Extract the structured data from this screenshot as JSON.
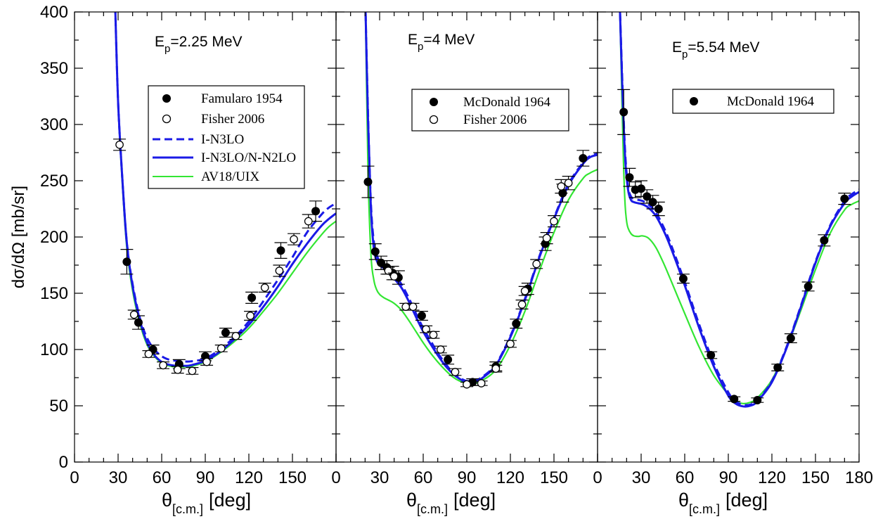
{
  "figure": {
    "ylabel": "dσ/dΩ [mb/sr]",
    "xlabel_main": "θ",
    "xlabel_sub": "[c.m.]",
    "xlabel_unit": "[deg]",
    "colors": {
      "dashed": "#1a1ae6",
      "solid": "#1a1ae6",
      "av18": "#33e633",
      "axis": "#000000"
    }
  },
  "chart_data": [
    {
      "type": "scatter",
      "panel": "left",
      "title": "E_p=2.25 MeV",
      "title_main": "E",
      "title_sub": "p",
      "title_rest": "=2.25 MeV",
      "xlim": [
        0,
        180
      ],
      "ylim": [
        0,
        400
      ],
      "x_ticks": [
        0,
        30,
        60,
        90,
        120,
        150
      ],
      "y_ticks": [
        0,
        50,
        100,
        150,
        200,
        250,
        300,
        350,
        400
      ],
      "legend": [
        "Famularo 1954",
        "Fisher 2006",
        "I-N3LO",
        "I-N3LO/N-N2LO",
        "AV18/UIX"
      ],
      "series": [
        {
          "name": "Famularo 1954",
          "kind": "filled",
          "x": [
            36,
            44,
            54,
            72,
            90,
            104,
            122,
            142,
            166
          ],
          "y": [
            178,
            124,
            100,
            87,
            94,
            115,
            146,
            188,
            223
          ],
          "err": [
            11,
            6,
            4,
            4,
            4,
            4,
            5,
            7,
            9
          ]
        },
        {
          "name": "Fisher 2006",
          "kind": "open",
          "x": [
            31,
            41,
            51,
            61,
            71,
            81,
            91,
            101,
            111,
            121,
            131,
            141,
            151,
            161
          ],
          "y": [
            282,
            131,
            96,
            86,
            82,
            81,
            89,
            101,
            112,
            130,
            155,
            170,
            198,
            214
          ],
          "err": [
            5,
            4,
            3,
            3,
            3,
            3,
            3,
            3,
            3,
            4,
            4,
            5,
            5,
            6
          ]
        },
        {
          "name": "I-N3LO",
          "kind": "dashed",
          "x": [
            28,
            30,
            33,
            36,
            40,
            45,
            50,
            55,
            60,
            65,
            70,
            75,
            80,
            90,
            100,
            110,
            120,
            130,
            140,
            150,
            160,
            170,
            175,
            180
          ],
          "y": [
            405,
            320,
            250,
            195,
            158,
            128,
            110,
            100,
            94,
            91,
            90,
            89.5,
            89.5,
            92,
            100,
            111,
            125,
            143,
            162,
            182,
            204,
            220,
            226,
            230
          ]
        },
        {
          "name": "I-N3LO/N-N2LO",
          "kind": "solid",
          "x": [
            28,
            30,
            33,
            36,
            40,
            45,
            50,
            55,
            60,
            65,
            70,
            75,
            80,
            90,
            100,
            110,
            120,
            130,
            140,
            150,
            160,
            170,
            175,
            180
          ],
          "y": [
            405,
            320,
            250,
            195,
            156,
            126,
            106,
            95,
            89,
            86.5,
            85.5,
            85.5,
            86,
            90,
            98,
            109,
            122,
            138,
            156,
            176,
            194,
            210,
            216,
            221
          ]
        },
        {
          "name": "AV18/UIX",
          "kind": "av18",
          "x": [
            28,
            30,
            33,
            36,
            40,
            45,
            50,
            55,
            60,
            65,
            70,
            75,
            80,
            90,
            100,
            110,
            120,
            130,
            140,
            150,
            160,
            170,
            175,
            180
          ],
          "y": [
            405,
            318,
            245,
            190,
            152,
            123,
            104,
            94,
            88,
            85.5,
            84.5,
            84.5,
            85,
            89,
            97,
            107,
            119,
            134,
            150,
            168,
            186,
            202,
            209,
            214
          ]
        }
      ]
    },
    {
      "type": "scatter",
      "panel": "middle",
      "title": "E_p=4 MeV",
      "title_main": "E",
      "title_sub": "p",
      "title_rest": "=4 MeV",
      "xlim": [
        0,
        180
      ],
      "ylim": [
        0,
        400
      ],
      "x_ticks": [
        0,
        30,
        60,
        90,
        120,
        150
      ],
      "legend": [
        "McDonald 1964",
        "Fisher 2006"
      ],
      "series": [
        {
          "name": "McDonald 1964",
          "kind": "filled",
          "x": [
            22,
            27,
            31,
            35,
            39,
            43,
            59,
            77,
            94,
            110,
            124,
            132,
            144,
            156,
            170
          ],
          "y": [
            249,
            187,
            177,
            173,
            168,
            164,
            130,
            91,
            71,
            85,
            123,
            154,
            194,
            239,
            270
          ],
          "err": [
            14,
            7,
            6,
            6,
            6,
            6,
            4,
            4,
            3,
            4,
            4,
            5,
            6,
            8,
            7
          ]
        },
        {
          "name": "Fisher 2006",
          "kind": "open",
          "x": [
            36,
            40,
            48,
            53,
            62,
            67,
            72,
            82,
            90,
            100,
            110,
            120,
            128,
            130,
            138,
            145,
            150,
            155,
            160
          ],
          "y": [
            170,
            165,
            138,
            138,
            118,
            113,
            100,
            80,
            69,
            70,
            83,
            105,
            140,
            152,
            176,
            199,
            214,
            245,
            248
          ],
          "err": [
            3,
            3,
            3,
            3,
            3,
            3,
            3,
            3,
            2,
            2,
            3,
            3,
            4,
            4,
            4,
            5,
            5,
            6,
            6
          ]
        },
        {
          "name": "I-N3LO",
          "kind": "dashed",
          "x": [
            20,
            22,
            24,
            26,
            28,
            30,
            33,
            36,
            40,
            45,
            50,
            55,
            60,
            65,
            70,
            75,
            80,
            85,
            90,
            95,
            100,
            110,
            120,
            130,
            140,
            150,
            160,
            170,
            175,
            180
          ],
          "y": [
            420,
            310,
            230,
            196,
            184,
            179,
            176,
            172,
            167,
            158,
            146,
            132,
            119,
            108,
            97,
            88,
            80,
            75,
            72,
            72.5,
            75,
            87,
            112,
            145,
            183,
            217,
            247,
            266,
            272,
            274
          ]
        },
        {
          "name": "I-N3LO/N-N2LO",
          "kind": "solid",
          "x": [
            20,
            22,
            24,
            26,
            28,
            30,
            33,
            36,
            40,
            45,
            50,
            55,
            60,
            65,
            70,
            75,
            80,
            85,
            90,
            95,
            100,
            110,
            120,
            130,
            140,
            150,
            160,
            170,
            175,
            180
          ],
          "y": [
            420,
            305,
            225,
            190,
            179,
            175,
            172,
            168,
            163,
            155,
            143,
            129,
            116,
            105,
            95,
            86,
            79,
            74,
            71,
            71.5,
            74,
            86,
            111,
            144,
            182,
            216,
            246,
            265,
            271,
            273
          ]
        },
        {
          "name": "AV18/UIX",
          "kind": "av18",
          "x": [
            20,
            22,
            24,
            26,
            28,
            30,
            33,
            36,
            40,
            45,
            50,
            55,
            60,
            65,
            70,
            75,
            80,
            85,
            90,
            95,
            100,
            110,
            120,
            130,
            140,
            150,
            160,
            170,
            175,
            180
          ],
          "y": [
            420,
            260,
            185,
            162,
            153,
            149,
            146,
            144,
            141,
            135,
            126,
            116,
            106,
            97,
            89,
            82,
            76,
            72,
            70,
            70,
            72,
            82,
            104,
            134,
            170,
            204,
            233,
            252,
            257,
            260
          ]
        }
      ]
    },
    {
      "type": "scatter",
      "panel": "right",
      "title": "E_p=5.54 MeV",
      "title_main": "E",
      "title_sub": "p",
      "title_rest": "=5.54 MeV",
      "xlim": [
        0,
        180
      ],
      "ylim": [
        0,
        400
      ],
      "x_ticks": [
        0,
        30,
        60,
        90,
        120,
        150,
        180
      ],
      "legend": [
        "McDonald 1964"
      ],
      "series": [
        {
          "name": "McDonald 1964",
          "kind": "filled",
          "x": [
            18,
            22,
            26,
            30,
            34,
            38,
            42,
            59,
            78,
            94,
            110,
            124,
            133,
            145,
            156,
            170
          ],
          "y": [
            311,
            253,
            242,
            243,
            236,
            231,
            225,
            163,
            95,
            56,
            55,
            84,
            110,
            156,
            197,
            234
          ],
          "err": [
            20,
            8,
            7,
            7,
            6,
            6,
            6,
            4,
            3,
            2,
            2,
            3,
            4,
            4,
            5,
            5
          ]
        },
        {
          "name": "I-N3LO",
          "kind": "dashed",
          "x": [
            15,
            17,
            19,
            21,
            23,
            25,
            28,
            31,
            35,
            40,
            45,
            50,
            60,
            70,
            80,
            90,
            95,
            100,
            105,
            110,
            120,
            130,
            140,
            150,
            160,
            170,
            175,
            180
          ],
          "y": [
            420,
            340,
            275,
            245,
            236,
            234,
            233,
            232,
            229,
            222,
            210,
            195,
            160,
            122,
            88,
            62,
            54,
            51,
            51,
            55,
            72,
            102,
            139,
            178,
            210,
            232,
            238,
            242
          ]
        },
        {
          "name": "I-N3LO/N-N2LO",
          "kind": "solid",
          "x": [
            15,
            17,
            19,
            21,
            23,
            25,
            28,
            31,
            35,
            40,
            45,
            50,
            60,
            70,
            80,
            90,
            95,
            100,
            105,
            110,
            120,
            130,
            140,
            150,
            160,
            170,
            175,
            180
          ],
          "y": [
            420,
            335,
            270,
            242,
            233,
            231,
            230,
            229,
            226,
            219,
            207,
            192,
            157,
            119,
            85,
            59,
            52,
            49.5,
            50,
            54,
            71,
            101,
            138,
            177,
            209,
            230,
            236,
            240
          ]
        },
        {
          "name": "AV18/UIX",
          "kind": "av18",
          "x": [
            15,
            17,
            18,
            19,
            20,
            21,
            23,
            25,
            28,
            31,
            35,
            40,
            45,
            50,
            60,
            70,
            80,
            90,
            95,
            100,
            105,
            110,
            120,
            130,
            140,
            150,
            160,
            170,
            175,
            180
          ],
          "y": [
            420,
            310,
            260,
            228,
            214,
            208,
            203,
            201,
            200.5,
            201,
            199,
            191,
            178,
            163,
            132,
            102,
            77,
            60,
            54,
            52,
            53,
            57,
            73,
            101,
            135,
            171,
            203,
            224,
            229,
            232
          ]
        }
      ]
    }
  ]
}
